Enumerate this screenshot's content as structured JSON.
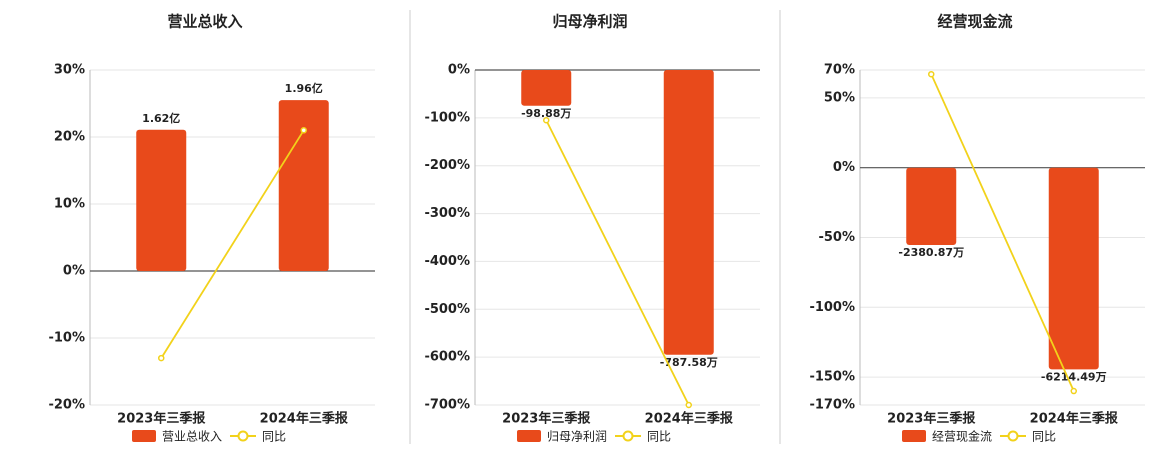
{
  "chart_data": [
    {
      "type": "combo",
      "title": "营业总收入",
      "categories": [
        "2023年三季报",
        "2024年三季报"
      ],
      "series": [
        {
          "name": "营业总收入",
          "type": "bar",
          "color": "#e84a1b",
          "values": [
            1.62,
            1.96
          ],
          "value_labels": [
            "1.62亿",
            "1.96亿"
          ]
        },
        {
          "name": "同比",
          "type": "line",
          "color": "#f2d21b",
          "values": [
            -13,
            21
          ]
        }
      ],
      "ylim": [
        -20,
        30
      ],
      "yticks": [
        {
          "value": 30,
          "label": "30%"
        },
        {
          "value": 20,
          "label": "20%"
        },
        {
          "value": 10,
          "label": "10%"
        },
        {
          "value": 0,
          "label": "0%"
        },
        {
          "value": -10,
          "label": "-10%"
        },
        {
          "value": -20,
          "label": "-20%"
        }
      ],
      "grid": true
    },
    {
      "type": "combo",
      "title": "归母净利润",
      "categories": [
        "2023年三季报",
        "2024年三季报"
      ],
      "series": [
        {
          "name": "归母净利润",
          "type": "bar",
          "color": "#e84a1b",
          "values": [
            -98.88,
            -787.58
          ],
          "value_labels": [
            "-98.88万",
            "-787.58万"
          ]
        },
        {
          "name": "同比",
          "type": "line",
          "color": "#f2d21b",
          "values": [
            -105,
            -700
          ]
        }
      ],
      "ylim": [
        -700,
        0
      ],
      "yticks": [
        {
          "value": 0,
          "label": "0%"
        },
        {
          "value": -100,
          "label": "-100%"
        },
        {
          "value": -200,
          "label": "-200%"
        },
        {
          "value": -300,
          "label": "-300%"
        },
        {
          "value": -400,
          "label": "-400%"
        },
        {
          "value": -500,
          "label": "-500%"
        },
        {
          "value": -600,
          "label": "-600%"
        },
        {
          "value": -700,
          "label": "-700%"
        }
      ],
      "grid": true
    },
    {
      "type": "combo",
      "title": "经营现金流",
      "categories": [
        "2023年三季报",
        "2024年三季报"
      ],
      "series": [
        {
          "name": "经营现金流",
          "type": "bar",
          "color": "#e84a1b",
          "values": [
            -2380.87,
            -6214.49
          ],
          "value_labels": [
            "-2380.87万",
            "-6214.49万"
          ]
        },
        {
          "name": "同比",
          "type": "line",
          "color": "#f2d21b",
          "values": [
            67,
            -160
          ]
        }
      ],
      "ylim": [
        -170,
        70
      ],
      "yticks": [
        {
          "value": 70,
          "label": "70%"
        },
        {
          "value": 50,
          "label": "50%"
        },
        {
          "value": 0,
          "label": "0%"
        },
        {
          "value": -50,
          "label": "-50%"
        },
        {
          "value": -100,
          "label": "-100%"
        },
        {
          "value": -150,
          "label": "-150%"
        },
        {
          "value": -170,
          "label": "-170%"
        }
      ],
      "grid": true
    }
  ]
}
